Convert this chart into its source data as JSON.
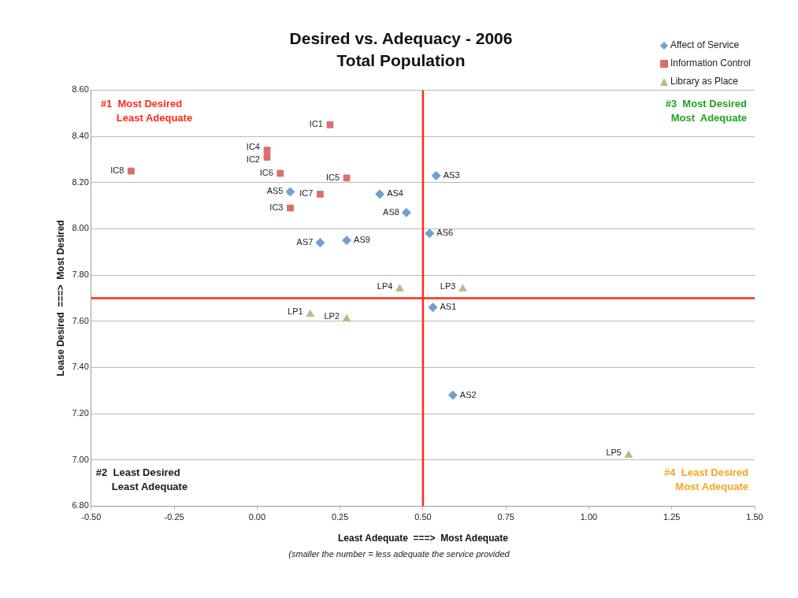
{
  "chart_data": {
    "type": "scatter",
    "title": "Desired vs. Adequacy - 2006",
    "subtitle": "Total Population",
    "xlabel": "Least Adequate  ===>  Most Adequate",
    "ylabel": "Lease Desired  ===>  Most Desired",
    "series": [
      {
        "name": "Affect of Service",
        "color": "#6fa0d0",
        "marker": "diamond",
        "x": [
          0.53,
          0.59,
          0.54,
          0.37,
          0.1,
          0.52,
          0.19,
          0.45,
          0.27
        ],
        "values": [
          7.66,
          7.28,
          8.23,
          8.15,
          8.16,
          7.98,
          7.94,
          8.07,
          7.95
        ],
        "value_labels": [
          "AS1",
          "AS2",
          "AS3",
          "AS4",
          "AS5",
          "AS6",
          "AS7",
          "AS8",
          "AS9"
        ]
      },
      {
        "name": "Information Control",
        "color": "#d9706c",
        "marker": "square",
        "x": [
          0.22,
          0.03,
          0.1,
          0.03,
          0.27,
          0.07,
          0.19,
          -0.38
        ],
        "values": [
          8.45,
          8.31,
          8.09,
          8.34,
          8.22,
          8.24,
          8.15,
          8.25
        ],
        "value_labels": [
          "IC1",
          "IC2",
          "IC3",
          "IC4",
          "IC5",
          "IC6",
          "IC7",
          "IC8"
        ]
      },
      {
        "name": "Library as Place",
        "color": "#a5c77f",
        "marker": "triangle",
        "x": [
          0.16,
          0.27,
          0.62,
          0.43,
          1.12
        ],
        "values": [
          7.63,
          7.61,
          7.74,
          7.74,
          7.02
        ],
        "value_labels": [
          "LP1",
          "LP2",
          "LP3",
          "LP4",
          "LP5"
        ]
      }
    ],
    "xlim": [
      -0.5,
      1.5
    ],
    "ylim": [
      6.8,
      8.6
    ],
    "xticks": [
      {
        "value": -0.5,
        "label": "-0.50"
      },
      {
        "value": -0.25,
        "label": "-0.25"
      },
      {
        "value": 0,
        "label": "0.00"
      },
      {
        "value": 0.25,
        "label": "0.25"
      },
      {
        "value": 0.5,
        "label": "0.50"
      },
      {
        "value": 0.75,
        "label": "0.75"
      },
      {
        "value": 1,
        "label": "1.00"
      },
      {
        "value": 1.25,
        "label": "1.25"
      },
      {
        "value": 1.5,
        "label": "1.50"
      }
    ],
    "yticks": [
      {
        "value": 6.8,
        "label": "6.80"
      },
      {
        "value": 7,
        "label": "7.00"
      },
      {
        "value": 7.2,
        "label": "7.20"
      },
      {
        "value": 7.4,
        "label": "7.40"
      },
      {
        "value": 7.6,
        "label": "7.60"
      },
      {
        "value": 7.8,
        "label": "7.80"
      },
      {
        "value": 8,
        "label": "8.00"
      },
      {
        "value": 8.2,
        "label": "8.20"
      },
      {
        "value": 8.4,
        "label": "8.40"
      },
      {
        "value": 8.6,
        "label": "8.60"
      }
    ],
    "ref_lines": [
      {
        "axis": "x",
        "value": 0.5,
        "color": "#ff2a1a"
      },
      {
        "axis": "y",
        "value": 7.7,
        "color": "#ff2a1a"
      }
    ],
    "annotations": [
      "#1  Most Desired\nLeast Adequate",
      "#2  Least Desired\nLeast Adequate",
      "#3  Most Desired\nMost  Adequate",
      "#4  Least Desired\nMost Adequate",
      "(smaller the number = less adequate the service provided"
    ],
    "grid": "y",
    "legend": "top right"
  }
}
